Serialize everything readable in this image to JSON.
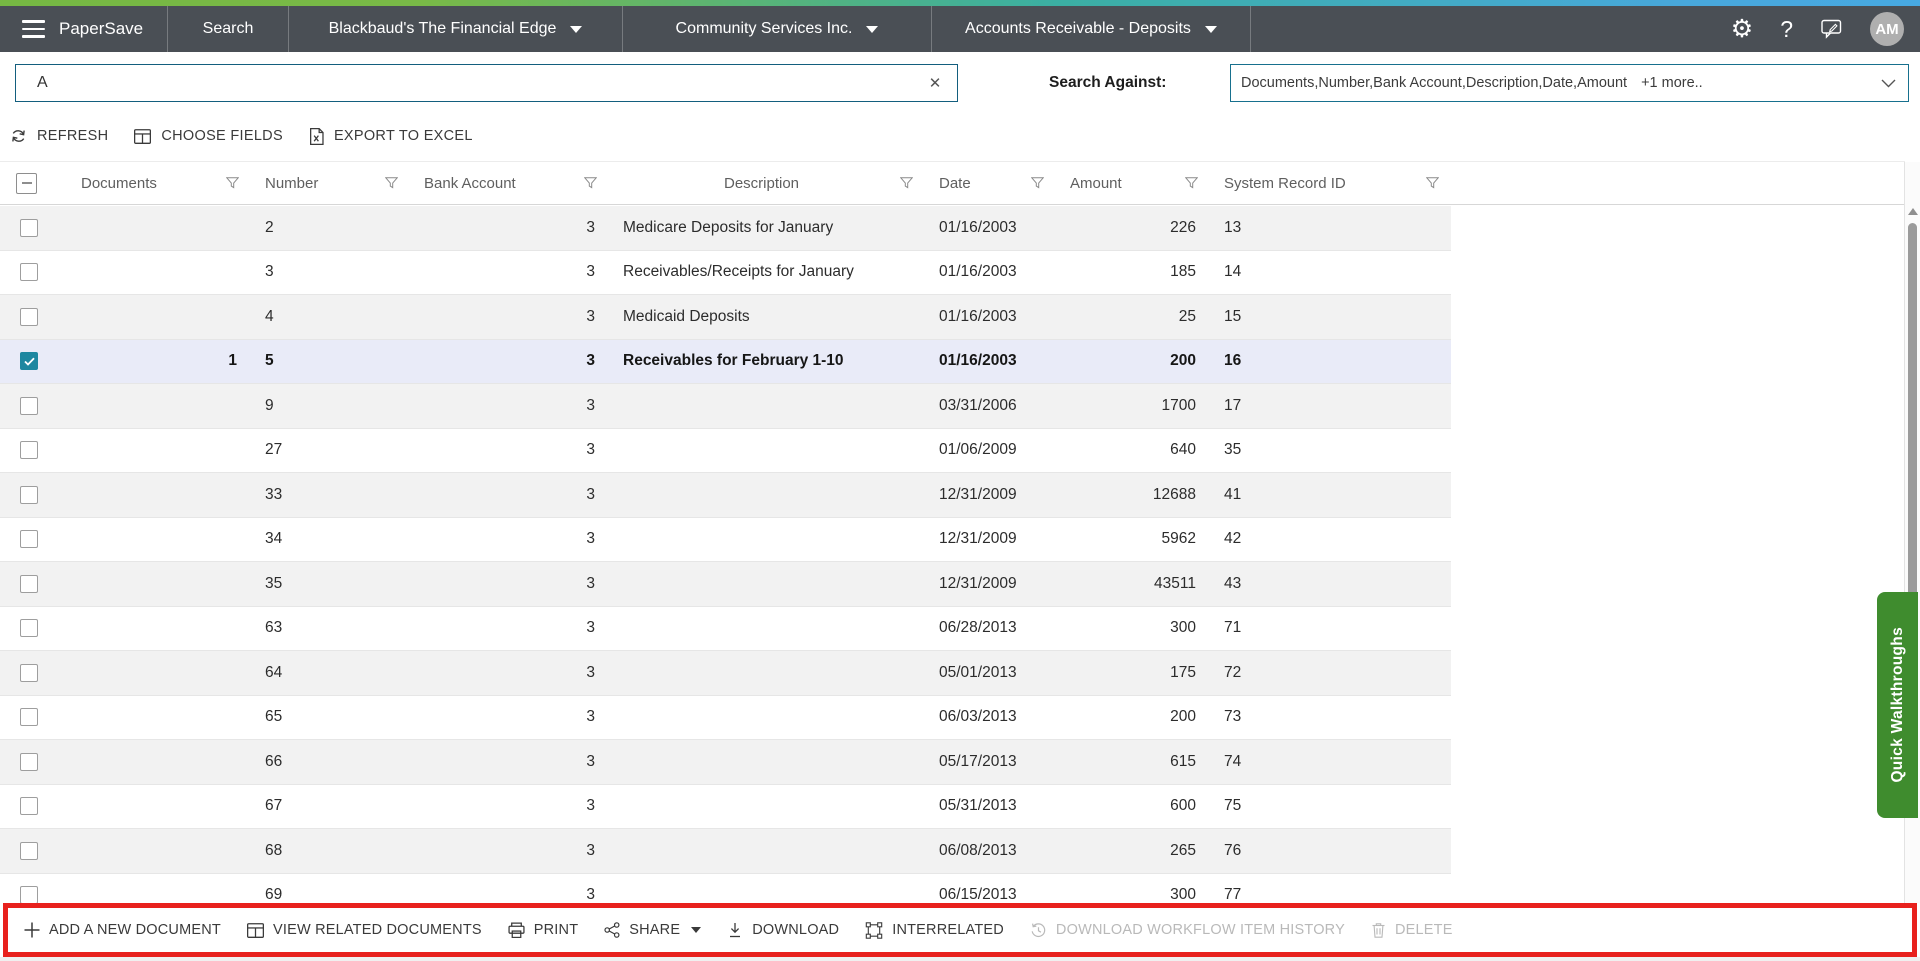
{
  "brandbar": {
    "brand": "PaperSave",
    "nav_search": "Search",
    "integration": "Blackbaud's The Financial Edge",
    "company": "Community Services Inc.",
    "record_type": "Accounts Receivable - Deposits",
    "help": "?",
    "avatar": "AM"
  },
  "search": {
    "value": "A",
    "clear": "✕",
    "against_label": "Search Against:",
    "against_value": "Documents,Number,Bank Account,Description,Date,Amount",
    "against_more": "+1 more.."
  },
  "toolbar": {
    "refresh": "REFRESH",
    "choose_fields": "CHOOSE FIELDS",
    "export_excel": "EXPORT TO EXCEL"
  },
  "table": {
    "columns": [
      "Documents",
      "Number",
      "Bank Account",
      "Description",
      "Date",
      "Amount",
      "System Record ID"
    ],
    "rows": [
      {
        "documents": "",
        "number": "2",
        "bank_account": "3",
        "description": "Medicare Deposits for January",
        "date": "01/16/2003",
        "amount": "226",
        "system_record_id": "13",
        "selected": false
      },
      {
        "documents": "",
        "number": "3",
        "bank_account": "3",
        "description": "Receivables/Receipts for January",
        "date": "01/16/2003",
        "amount": "185",
        "system_record_id": "14",
        "selected": false
      },
      {
        "documents": "",
        "number": "4",
        "bank_account": "3",
        "description": "Medicaid Deposits",
        "date": "01/16/2003",
        "amount": "25",
        "system_record_id": "15",
        "selected": false
      },
      {
        "documents": "1",
        "number": "5",
        "bank_account": "3",
        "description": "Receivables for February 1-10",
        "date": "01/16/2003",
        "amount": "200",
        "system_record_id": "16",
        "selected": true
      },
      {
        "documents": "",
        "number": "9",
        "bank_account": "3",
        "description": "",
        "date": "03/31/2006",
        "amount": "1700",
        "system_record_id": "17",
        "selected": false
      },
      {
        "documents": "",
        "number": "27",
        "bank_account": "3",
        "description": "",
        "date": "01/06/2009",
        "amount": "640",
        "system_record_id": "35",
        "selected": false
      },
      {
        "documents": "",
        "number": "33",
        "bank_account": "3",
        "description": "",
        "date": "12/31/2009",
        "amount": "12688",
        "system_record_id": "41",
        "selected": false
      },
      {
        "documents": "",
        "number": "34",
        "bank_account": "3",
        "description": "",
        "date": "12/31/2009",
        "amount": "5962",
        "system_record_id": "42",
        "selected": false
      },
      {
        "documents": "",
        "number": "35",
        "bank_account": "3",
        "description": "",
        "date": "12/31/2009",
        "amount": "43511",
        "system_record_id": "43",
        "selected": false
      },
      {
        "documents": "",
        "number": "63",
        "bank_account": "3",
        "description": "",
        "date": "06/28/2013",
        "amount": "300",
        "system_record_id": "71",
        "selected": false
      },
      {
        "documents": "",
        "number": "64",
        "bank_account": "3",
        "description": "",
        "date": "05/01/2013",
        "amount": "175",
        "system_record_id": "72",
        "selected": false
      },
      {
        "documents": "",
        "number": "65",
        "bank_account": "3",
        "description": "",
        "date": "06/03/2013",
        "amount": "200",
        "system_record_id": "73",
        "selected": false
      },
      {
        "documents": "",
        "number": "66",
        "bank_account": "3",
        "description": "",
        "date": "05/17/2013",
        "amount": "615",
        "system_record_id": "74",
        "selected": false
      },
      {
        "documents": "",
        "number": "67",
        "bank_account": "3",
        "description": "",
        "date": "05/31/2013",
        "amount": "600",
        "system_record_id": "75",
        "selected": false
      },
      {
        "documents": "",
        "number": "68",
        "bank_account": "3",
        "description": "",
        "date": "06/08/2013",
        "amount": "265",
        "system_record_id": "76",
        "selected": false
      },
      {
        "documents": "",
        "number": "69",
        "bank_account": "3",
        "description": "",
        "date": "06/15/2013",
        "amount": "300",
        "system_record_id": "77",
        "selected": false
      }
    ]
  },
  "actions": {
    "items": [
      {
        "label": "ADD A NEW DOCUMENT",
        "enabled": true
      },
      {
        "label": "VIEW RELATED DOCUMENTS",
        "enabled": true
      },
      {
        "label": "PRINT",
        "enabled": true
      },
      {
        "label": "SHARE",
        "enabled": true
      },
      {
        "label": "DOWNLOAD",
        "enabled": true
      },
      {
        "label": "INTERRELATED",
        "enabled": true
      },
      {
        "label": "DOWNLOAD WORKFLOW ITEM HISTORY",
        "enabled": false
      },
      {
        "label": "DELETE",
        "enabled": false
      }
    ]
  },
  "side_tab": {
    "label": "Quick Walkthroughs"
  },
  "colors": {
    "brand_bar": "#4a4f55",
    "accent_teal": "#1d87a0",
    "input_border": "#135e7e",
    "selected_row": "#e9ebf8",
    "row_alt": "#f2f2f2",
    "highlight_red": "#e8211d",
    "walkthrough_green": "#3f8c2e",
    "gradient_strip": [
      "#76b843",
      "#3bafa3",
      "#47a9e2"
    ]
  }
}
